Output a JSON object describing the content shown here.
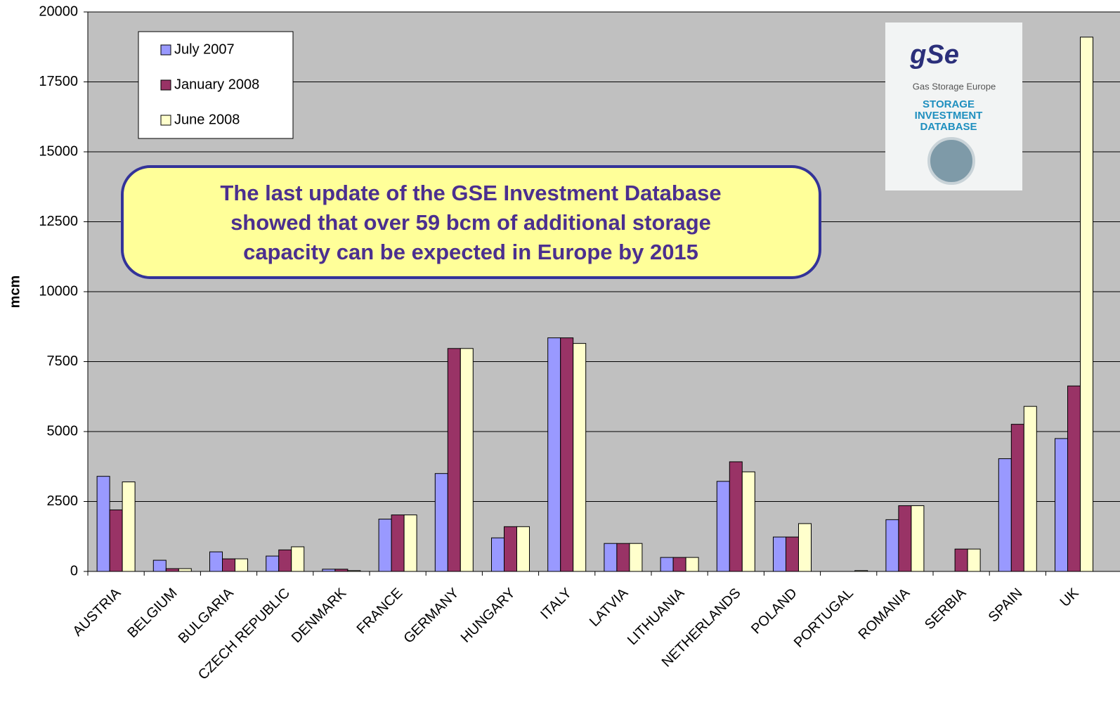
{
  "chart_data": {
    "type": "bar",
    "y_label": "mcm",
    "categories": [
      "AUSTRIA",
      "BELGIUM",
      "BULGARIA",
      "CZECH REPUBLIC",
      "DENMARK",
      "FRANCE",
      "GERMANY",
      "HUNGARY",
      "ITALY",
      "LATVIA",
      "LITHUANIA",
      "NETHERLANDS",
      "POLAND",
      "PORTUGAL",
      "ROMANIA",
      "SERBIA",
      "SPAIN",
      "UK"
    ],
    "series": [
      {
        "name": "July 2007",
        "color": "#9999ff",
        "values": [
          3400,
          400,
          700,
          550,
          80,
          1870,
          3500,
          1200,
          8350,
          1000,
          500,
          3220,
          1230,
          0,
          1850,
          0,
          4030,
          4750
        ]
      },
      {
        "name": "January 2008",
        "color": "#993366",
        "values": [
          2200,
          100,
          450,
          770,
          80,
          2020,
          7970,
          1600,
          8350,
          1000,
          500,
          3920,
          1230,
          0,
          2350,
          800,
          5260,
          6630
        ]
      },
      {
        "name": "June 2008",
        "color": "#ffffcc",
        "values": [
          3200,
          100,
          450,
          880,
          30,
          2020,
          7970,
          1600,
          8150,
          1000,
          500,
          3560,
          1710,
          30,
          2350,
          800,
          5900,
          19100
        ]
      }
    ],
    "ylim": [
      0,
      20000
    ],
    "yticks": [
      0,
      2500,
      5000,
      7500,
      10000,
      12500,
      15000,
      17500,
      20000
    ],
    "grid": true,
    "legend": "top-left",
    "annotation": [
      "The last update of the GSE Investment Database",
      "showed that over 59 bcm of additional storage",
      "capacity can be expected in Europe by 2015"
    ],
    "logo": {
      "brand": "gSe",
      "name": "Gas Storage Europe",
      "lines": [
        "STORAGE",
        "INVESTMENT",
        "DATABASE"
      ]
    }
  }
}
